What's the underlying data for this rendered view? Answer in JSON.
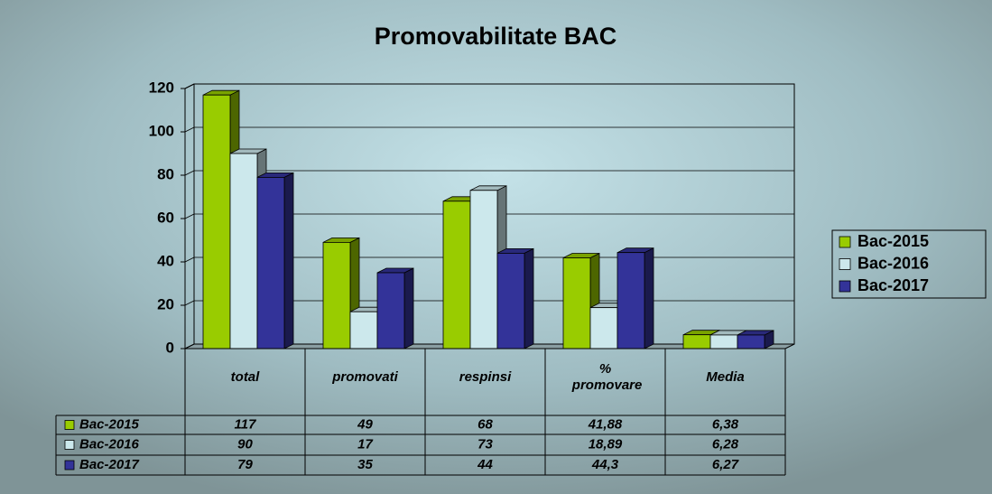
{
  "chart_data": {
    "type": "bar",
    "title": "Promovabilitate BAC",
    "categories": [
      "total",
      "promovati",
      "respinsi",
      "% promovare",
      "Media"
    ],
    "series": [
      {
        "name": "Bac-2015",
        "color": "#99cc00",
        "values": [
          117,
          49,
          68,
          41.88,
          6.38
        ],
        "value_labels": [
          "117",
          "49",
          "68",
          "41,88",
          "6,38"
        ]
      },
      {
        "name": "Bac-2016",
        "color": "#cce8ec",
        "values": [
          90,
          17,
          73,
          18.89,
          6.28
        ],
        "value_labels": [
          "90",
          "17",
          "73",
          "18,89",
          "6,28"
        ]
      },
      {
        "name": "Bac-2017",
        "color": "#333399",
        "values": [
          79,
          35,
          44,
          44.3,
          6.27
        ],
        "value_labels": [
          "79",
          "35",
          "44",
          "44,3",
          "6,27"
        ]
      }
    ],
    "ylim": [
      0,
      120
    ],
    "yticks": [
      0,
      20,
      40,
      60,
      80,
      100,
      120
    ],
    "grid": true,
    "legend": "right",
    "data_table": true
  }
}
